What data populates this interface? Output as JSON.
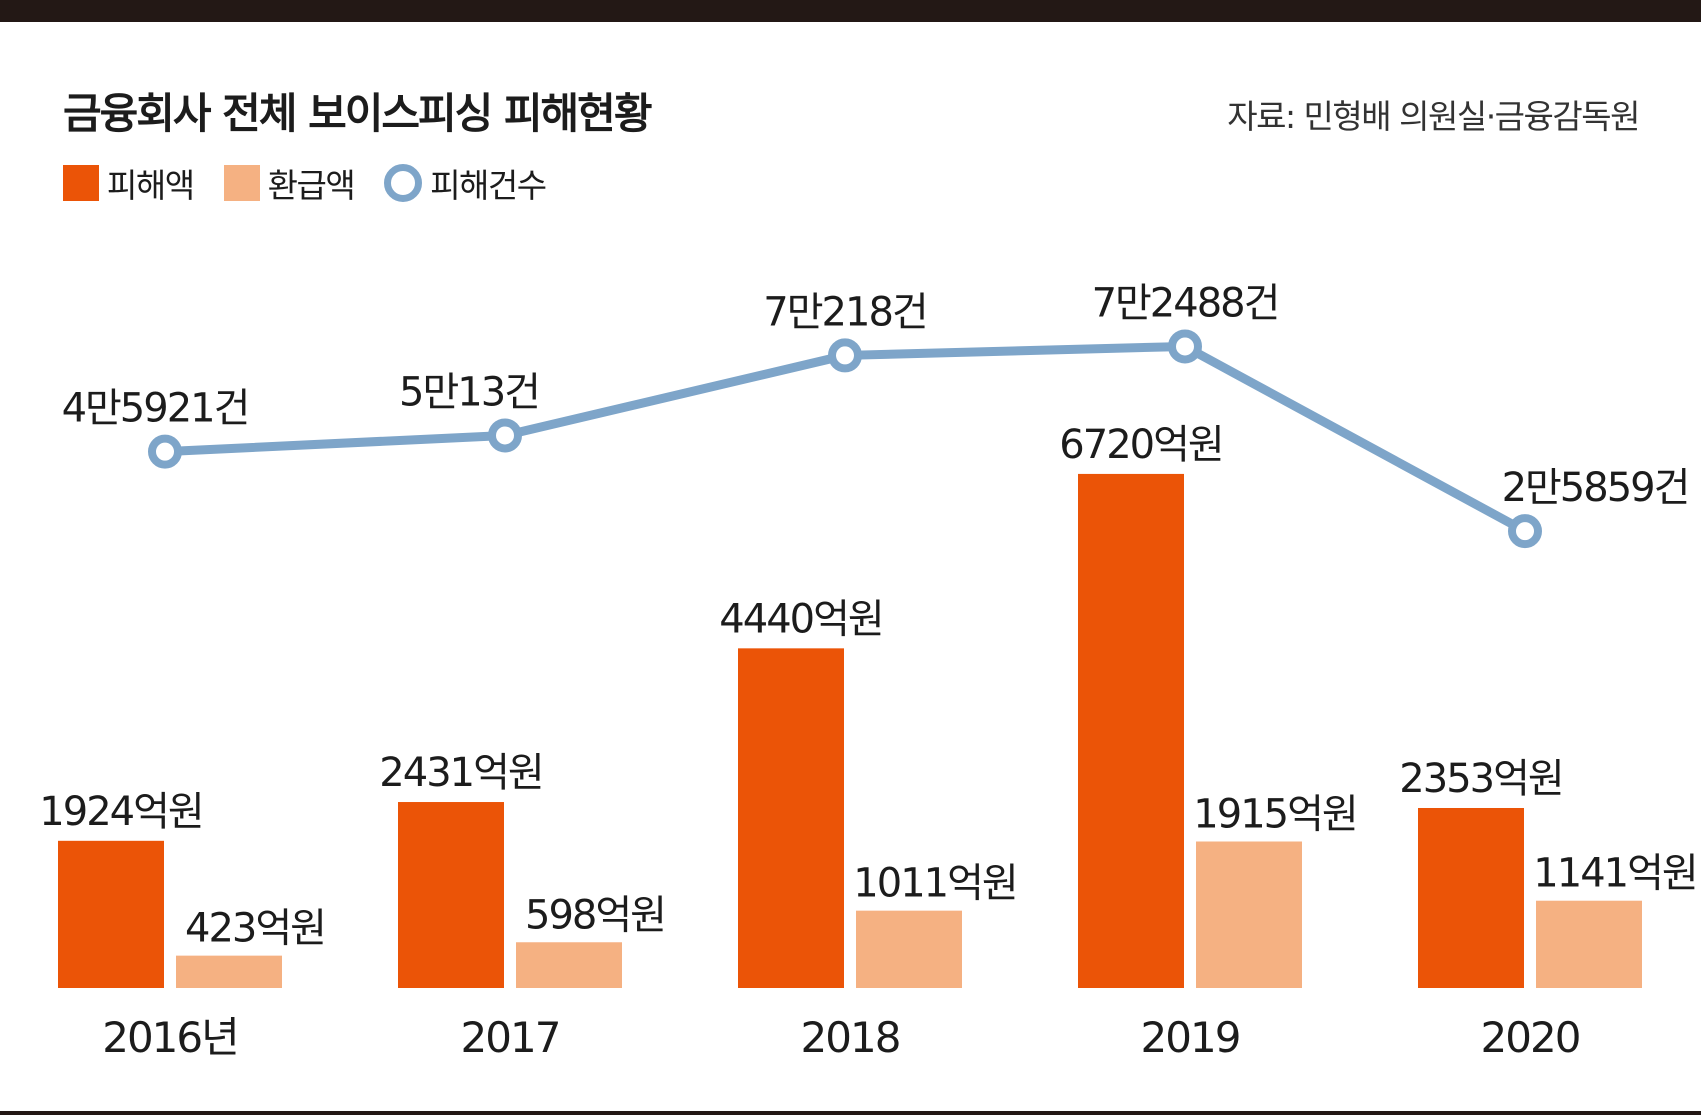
{
  "title": "금융회사 전체 보이스피싱 피해현황",
  "source": "자료: 민형배 의원실·금융감독원",
  "colors": {
    "damage": "#eb5407",
    "refund": "#f5b182",
    "count_line": "#7ea5c9"
  },
  "legend": [
    {
      "label": "피해액",
      "shape": "square"
    },
    {
      "label": "환급액",
      "shape": "square"
    },
    {
      "label": "피해건수",
      "shape": "circle"
    }
  ],
  "chart_data": {
    "type": "bar",
    "categories": [
      "2016년",
      "2017",
      "2018",
      "2019",
      "2020"
    ],
    "series": [
      {
        "name": "피해액",
        "type": "bar",
        "values": [
          1924,
          2431,
          4440,
          6720,
          2353
        ],
        "labels": [
          "1924억원",
          "2431억원",
          "4440억원",
          "6720억원",
          "2353억원"
        ]
      },
      {
        "name": "환급액",
        "type": "bar",
        "values": [
          423,
          598,
          1011,
          1915,
          1141
        ],
        "labels": [
          "423억원",
          "598억원",
          "1011억원",
          "1915억원",
          "1141억원"
        ]
      },
      {
        "name": "피해건수",
        "type": "line",
        "values": [
          45921,
          50013,
          70218,
          72488,
          25859
        ],
        "labels": [
          "4만5921건",
          "5만13건",
          "7만218건",
          "7만2488건",
          "2만5859건"
        ]
      }
    ],
    "legend_position": "top-left",
    "grid": false
  }
}
